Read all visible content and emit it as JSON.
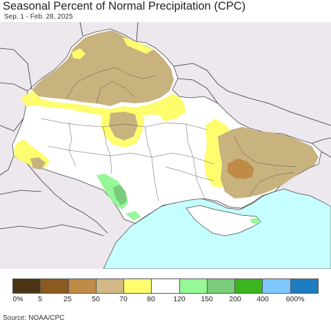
{
  "title": "Seasonal Percent of Normal Precipitation (CPC)",
  "subtitle": "Sep. 1 - Feb. 28, 2025",
  "source": "Source: NOAA/CPC",
  "legend": {
    "colors": [
      "#4d3414",
      "#8b5a1e",
      "#c08a47",
      "#d2b886",
      "#fdfd6e",
      "#ffffff",
      "#96f796",
      "#79cc79",
      "#3cb41e",
      "#7dc8ff",
      "#1e7dc1"
    ],
    "labels": [
      "0%",
      "5",
      "25",
      "50",
      "70",
      "80",
      "120",
      "150",
      "200",
      "400",
      "600%"
    ]
  },
  "map_colors": {
    "land_outside": "#ece8ee",
    "sea": "#c5ffff",
    "white": "#ffffff",
    "yellow": "#fdfd6e",
    "tan": "#c8b27e",
    "brown": "#c08a47",
    "light_green": "#96f796",
    "green": "#79cc79",
    "border": "#444444"
  }
}
